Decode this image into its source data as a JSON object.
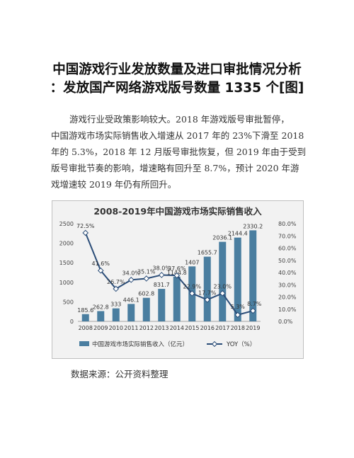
{
  "article": {
    "title_line1": "中国游戏行业发放数量及进口审批情况分析",
    "title_line2": "：发放国产网络游戏版号数量 1335 个[图]",
    "paragraph_lines": [
      "游戏行业受政策影响较大。2018 年游戏版号审批暂停，",
      "中国游戏市场实际销售收入增速从 2017 年的 23%下滑至 2018",
      "年的 5.3%，2018 年 12 月版号审批恢复，但 2019 年由于受到",
      "版号审批节奏的影响，增速略有回升至 8.7%，预计 2020 年游",
      "戏增速较 2019 年仍有所回升。"
    ],
    "source": "数据来源：公开资料整理"
  },
  "chart_data": {
    "type": "bar",
    "title": "2008-2019年中国游戏市场实际销售收入",
    "categories": [
      "2008",
      "2009",
      "2010",
      "2011",
      "2012",
      "2013",
      "2014",
      "2015",
      "2016",
      "2017",
      "2018",
      "2019"
    ],
    "series": [
      {
        "name": "中国游戏市场实际销售收入（亿元）",
        "type": "bar",
        "axis": "left",
        "values": [
          185.6,
          262.8,
          333,
          446.1,
          602.8,
          831.7,
          1144.8,
          1407,
          1655.7,
          2036.1,
          2144.4,
          2330.2
        ],
        "labels": [
          "185.6",
          "262.8",
          "333",
          "446.1",
          "602.8",
          "831.7",
          "1144.8",
          "1407",
          "1655.7",
          "2036.1",
          "2144.4",
          "2330.2"
        ]
      },
      {
        "name": "YOY（%）",
        "type": "line",
        "axis": "right",
        "values": [
          72.5,
          41.6,
          26.7,
          34.0,
          35.1,
          38.0,
          37.6,
          22.9,
          17.7,
          23.0,
          5.3,
          8.7
        ],
        "labels": [
          "72.5%",
          "41.6%",
          "26.7%",
          "34.0%",
          "35.1%",
          "38.0%",
          "37.6%",
          "22.9%",
          "17.7%",
          "23.0%",
          "5.3%",
          "8.7%"
        ]
      }
    ],
    "y_left": {
      "min": 0,
      "max": 2500,
      "ticks": [
        "0",
        "500",
        "1000",
        "1500",
        "2000",
        "2500"
      ]
    },
    "y_right": {
      "min": 0,
      "max": 80,
      "ticks": [
        "0.0%",
        "10.0%",
        "20.0%",
        "30.0%",
        "40.0%",
        "50.0%",
        "60.0%",
        "70.0%",
        "80.0%"
      ]
    },
    "grid": false,
    "legend_position": "bottom",
    "colors": {
      "bar": "#4a7ea0",
      "line": "#2b4d78",
      "marker_fill": "#ffffff",
      "background": "#f2f2f2"
    }
  }
}
